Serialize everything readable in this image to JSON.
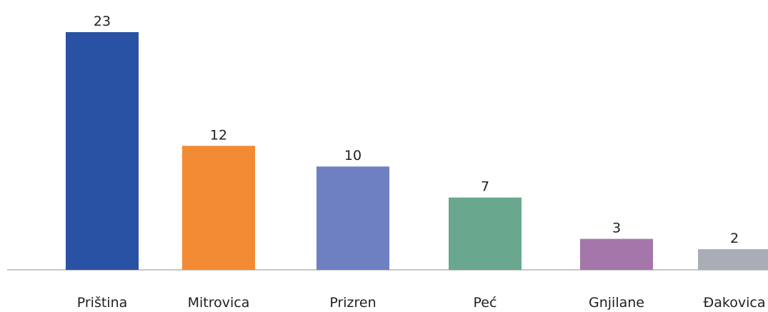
{
  "chart_data": {
    "type": "bar",
    "categories": [
      "Priština",
      "Mitrovica",
      "Prizren",
      "Peć",
      "Gnjilane",
      "Đakovica"
    ],
    "values": [
      23,
      12,
      10,
      7,
      3,
      2
    ],
    "colors": [
      "#2a52a4",
      "#f28a33",
      "#6f80c2",
      "#69a88f",
      "#a576a9",
      "#a9adb5"
    ],
    "axis_color": "#c8c8c8",
    "ylim": [
      0,
      23
    ],
    "grid": false,
    "legend": "none",
    "data_labels": true
  }
}
